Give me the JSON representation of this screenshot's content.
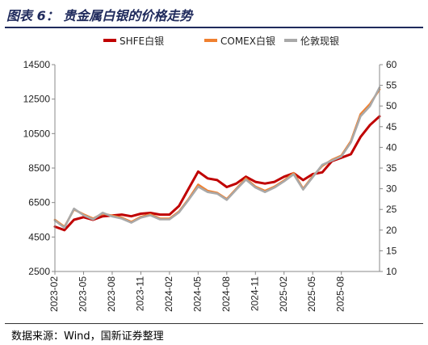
{
  "header": {
    "title": "图表 6：  贵金属白银的价格走势"
  },
  "footer": {
    "source": "数据来源：Wind，国新证券整理"
  },
  "chart_data": {
    "type": "line",
    "left_axis": {
      "ticks": [
        2500,
        4500,
        6500,
        8500,
        10500,
        12500,
        14500
      ],
      "range": [
        2500,
        14500
      ]
    },
    "right_axis": {
      "ticks": [
        10,
        15,
        20,
        25,
        30,
        35,
        40,
        45,
        50,
        55,
        60
      ],
      "range": [
        10,
        60
      ]
    },
    "x_ticks": [
      "2023-02",
      "2023-05",
      "2023-08",
      "2023-11",
      "2024-02",
      "2024-05",
      "2024-08",
      "2024-11",
      "2025-02",
      "2025-05",
      "2025-08"
    ],
    "x_range": [
      "2023-02",
      "2025-12"
    ],
    "legend_position": "top-center",
    "grid": false,
    "series": [
      {
        "name": "SHFE白银",
        "axis": "left",
        "color": "#c00000",
        "points": [
          [
            "2023-02",
            5100
          ],
          [
            "2023-03",
            4900
          ],
          [
            "2023-04",
            5500
          ],
          [
            "2023-05",
            5650
          ],
          [
            "2023-06",
            5500
          ],
          [
            "2023-07",
            5700
          ],
          [
            "2023-08",
            5750
          ],
          [
            "2023-09",
            5800
          ],
          [
            "2023-10",
            5700
          ],
          [
            "2023-11",
            5850
          ],
          [
            "2023-12",
            5900
          ],
          [
            "2024-01",
            5800
          ],
          [
            "2024-02",
            5800
          ],
          [
            "2024-03",
            6300
          ],
          [
            "2024-04",
            7300
          ],
          [
            "2024-05",
            8300
          ],
          [
            "2024-06",
            7900
          ],
          [
            "2024-07",
            7800
          ],
          [
            "2024-08",
            7400
          ],
          [
            "2024-09",
            7600
          ],
          [
            "2024-10",
            8000
          ],
          [
            "2024-11",
            7700
          ],
          [
            "2024-12",
            7600
          ],
          [
            "2025-01",
            7700
          ],
          [
            "2025-02",
            8000
          ],
          [
            "2025-03",
            8200
          ],
          [
            "2025-04",
            7800
          ],
          [
            "2025-05",
            8150
          ],
          [
            "2025-06",
            8250
          ],
          [
            "2025-07",
            8900
          ],
          [
            "2025-08",
            9100
          ],
          [
            "2025-09",
            9300
          ],
          [
            "2025-10",
            10300
          ],
          [
            "2025-11",
            11000
          ],
          [
            "2025-12",
            11500
          ]
        ]
      },
      {
        "name": "COMEX白银",
        "axis": "right",
        "color": "#f08030",
        "points": [
          [
            "2023-02",
            22.5
          ],
          [
            "2023-03",
            20.8
          ],
          [
            "2023-04",
            25.0
          ],
          [
            "2023-05",
            23.8
          ],
          [
            "2023-06",
            22.8
          ],
          [
            "2023-07",
            24.0
          ],
          [
            "2023-08",
            23.5
          ],
          [
            "2023-09",
            23.0
          ],
          [
            "2023-10",
            22.0
          ],
          [
            "2023-11",
            23.2
          ],
          [
            "2023-12",
            23.8
          ],
          [
            "2024-01",
            22.8
          ],
          [
            "2024-02",
            22.8
          ],
          [
            "2024-03",
            24.5
          ],
          [
            "2024-04",
            27.5
          ],
          [
            "2024-05",
            31.0
          ],
          [
            "2024-06",
            29.5
          ],
          [
            "2024-07",
            29.0
          ],
          [
            "2024-08",
            27.5
          ],
          [
            "2024-09",
            30.0
          ],
          [
            "2024-10",
            32.5
          ],
          [
            "2024-11",
            30.5
          ],
          [
            "2024-12",
            29.5
          ],
          [
            "2025-01",
            30.5
          ],
          [
            "2025-02",
            32.0
          ],
          [
            "2025-03",
            33.8
          ],
          [
            "2025-04",
            30.0
          ],
          [
            "2025-05",
            33.0
          ],
          [
            "2025-06",
            35.5
          ],
          [
            "2025-07",
            37.0
          ],
          [
            "2025-08",
            38.0
          ],
          [
            "2025-09",
            41.5
          ],
          [
            "2025-10",
            48.0
          ],
          [
            "2025-11",
            50.5
          ],
          [
            "2025-12",
            54.0
          ]
        ]
      },
      {
        "name": "伦敦现银",
        "axis": "right",
        "color": "#a9a9a9",
        "points": [
          [
            "2023-02",
            22.3
          ],
          [
            "2023-03",
            20.6
          ],
          [
            "2023-04",
            25.2
          ],
          [
            "2023-05",
            23.6
          ],
          [
            "2023-06",
            22.6
          ],
          [
            "2023-07",
            24.2
          ],
          [
            "2023-08",
            23.3
          ],
          [
            "2023-09",
            22.8
          ],
          [
            "2023-10",
            21.8
          ],
          [
            "2023-11",
            23.0
          ],
          [
            "2023-12",
            23.6
          ],
          [
            "2024-01",
            22.6
          ],
          [
            "2024-02",
            22.6
          ],
          [
            "2024-03",
            24.3
          ],
          [
            "2024-04",
            27.3
          ],
          [
            "2024-05",
            30.5
          ],
          [
            "2024-06",
            29.2
          ],
          [
            "2024-07",
            28.8
          ],
          [
            "2024-08",
            27.3
          ],
          [
            "2024-09",
            29.8
          ],
          [
            "2024-10",
            32.2
          ],
          [
            "2024-11",
            30.3
          ],
          [
            "2024-12",
            29.2
          ],
          [
            "2025-01",
            30.3
          ],
          [
            "2025-02",
            31.8
          ],
          [
            "2025-03",
            33.5
          ],
          [
            "2025-04",
            29.8
          ],
          [
            "2025-05",
            32.8
          ],
          [
            "2025-06",
            35.8
          ],
          [
            "2025-07",
            36.8
          ],
          [
            "2025-08",
            37.8
          ],
          [
            "2025-09",
            41.2
          ],
          [
            "2025-10",
            47.5
          ],
          [
            "2025-11",
            50.0
          ],
          [
            "2025-12",
            54.5
          ]
        ]
      }
    ]
  }
}
